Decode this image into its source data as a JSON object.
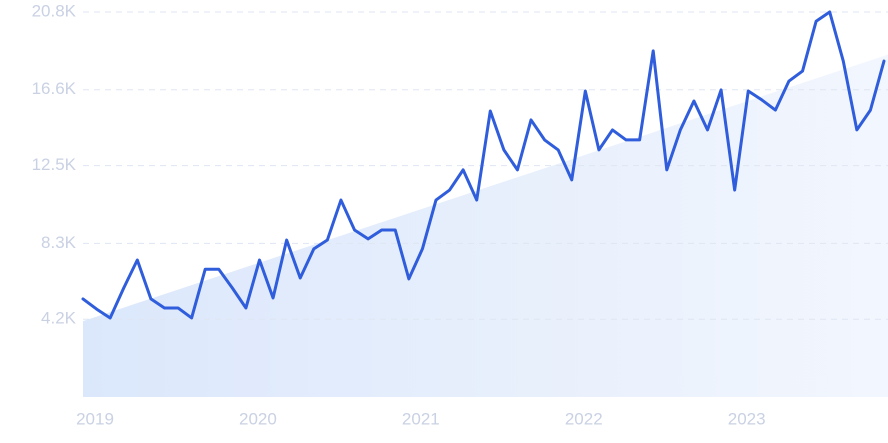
{
  "chart_data": {
    "type": "line",
    "categories": [
      "2019",
      null,
      null,
      null,
      null,
      null,
      null,
      null,
      null,
      null,
      null,
      null,
      "2020",
      null,
      null,
      null,
      null,
      null,
      null,
      null,
      null,
      null,
      null,
      null,
      "2021",
      null,
      null,
      null,
      null,
      null,
      null,
      null,
      null,
      null,
      null,
      null,
      "2022",
      null,
      null,
      null,
      null,
      null,
      null,
      null,
      null,
      null,
      null,
      null,
      "2023",
      null,
      null,
      null,
      null,
      null,
      null,
      null,
      null,
      null,
      null,
      null
    ],
    "series": [
      {
        "color": "#2f5ddb",
        "values": [
          5300,
          4750,
          4270,
          5890,
          7400,
          5300,
          4810,
          4810,
          4270,
          6900,
          6900,
          5890,
          4810,
          7400,
          5350,
          8480,
          6430,
          8000,
          8480,
          10640,
          9020,
          8540,
          9020,
          9020,
          6380,
          8000,
          10640,
          11180,
          12270,
          10640,
          15450,
          13350,
          12270,
          14970,
          13890,
          13350,
          11730,
          16530,
          13350,
          14430,
          13890,
          13890,
          18700,
          12270,
          14430,
          15990,
          14430,
          16590,
          11180,
          16530,
          16050,
          15500,
          17070,
          17610,
          20300,
          20800,
          18150,
          14430,
          15500,
          18150
        ]
      }
    ],
    "trend": {
      "color": "#dbe7fb",
      "values": [
        4100,
        18500
      ]
    },
    "ylim": [
      0,
      20800
    ],
    "yticks": [
      {
        "value": 4200,
        "label": "4.2K"
      },
      {
        "value": 8300,
        "label": "8.3K"
      },
      {
        "value": 12500,
        "label": "12.5K"
      },
      {
        "value": 16600,
        "label": "16.6K"
      },
      {
        "value": 20800,
        "label": "20.8K"
      }
    ],
    "grid": true
  }
}
